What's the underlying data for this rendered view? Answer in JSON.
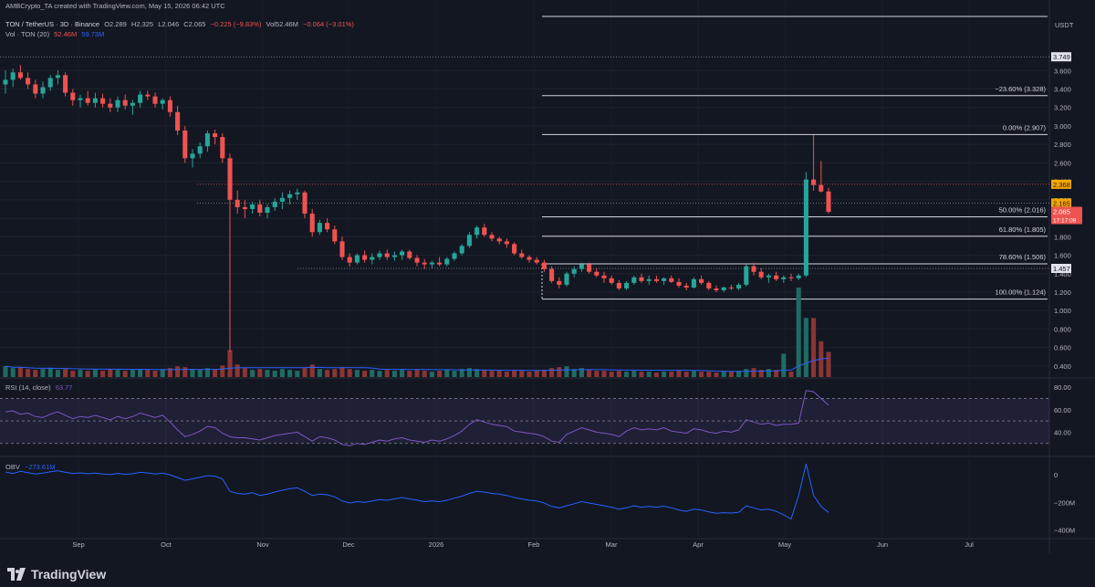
{
  "header": {
    "author": "AMBCrypto_TA created with TradingView.com, May 15, 2026 06:42 UTC",
    "symbol": "TON / TetherUS · 3D · Binance",
    "o": "O2.289",
    "h": "H2.325",
    "l": "L2.046",
    "c": "C2.065",
    "chg": "−0.225 (−9.83%)",
    "vol": "Vol52.46M",
    "vol_chg": "−0.064 (−3.01%)",
    "vol_ind": "Vol · TON (20)",
    "vol_val": "52.46M",
    "vol_ma": "59.73M"
  },
  "brand": "TradingView",
  "colors": {
    "up": "#26a69a",
    "down": "#ef5350",
    "bg": "#131722",
    "grid": "#2a2e39",
    "fib": "#d1d4dc",
    "rsi": "#7e57c2",
    "obv": "#2962ff",
    "ma": "#2962ff"
  },
  "chart_data": [
    {
      "type": "candlestick",
      "title": "TON / TetherUS · 3D · Binance",
      "currency": "USDT",
      "y_ticks": [
        "3.600",
        "3.400",
        "3.200",
        "3.000",
        "2.800",
        "2.600",
        "2.400",
        "2.200",
        "2.000",
        "1.800",
        "1.600",
        "1.400",
        "1.200",
        "1.000",
        "0.800",
        "0.600",
        "0.400"
      ],
      "ylim": [
        0.3,
        3.85
      ],
      "x_labels": [
        "Sep",
        "Oct",
        "Nov",
        "Dec",
        "2026",
        "Feb",
        "Mar",
        "Apr",
        "May",
        "Jun",
        "Jul"
      ],
      "ohlc": [
        [
          3.45,
          3.6,
          3.35,
          3.5
        ],
        [
          3.5,
          3.62,
          3.42,
          3.58
        ],
        [
          3.58,
          3.66,
          3.5,
          3.52
        ],
        [
          3.52,
          3.58,
          3.4,
          3.45
        ],
        [
          3.45,
          3.5,
          3.3,
          3.35
        ],
        [
          3.35,
          3.48,
          3.3,
          3.42
        ],
        [
          3.42,
          3.55,
          3.38,
          3.52
        ],
        [
          3.52,
          3.6,
          3.45,
          3.55
        ],
        [
          3.55,
          3.58,
          3.32,
          3.36
        ],
        [
          3.36,
          3.4,
          3.22,
          3.28
        ],
        [
          3.28,
          3.34,
          3.2,
          3.3
        ],
        [
          3.3,
          3.38,
          3.22,
          3.25
        ],
        [
          3.25,
          3.36,
          3.2,
          3.3
        ],
        [
          3.3,
          3.35,
          3.2,
          3.24
        ],
        [
          3.24,
          3.3,
          3.15,
          3.2
        ],
        [
          3.2,
          3.32,
          3.15,
          3.28
        ],
        [
          3.28,
          3.34,
          3.18,
          3.22
        ],
        [
          3.22,
          3.28,
          3.12,
          3.25
        ],
        [
          3.25,
          3.38,
          3.2,
          3.34
        ],
        [
          3.34,
          3.38,
          3.28,
          3.32
        ],
        [
          3.32,
          3.36,
          3.2,
          3.24
        ],
        [
          3.24,
          3.3,
          3.18,
          3.28
        ],
        [
          3.28,
          3.32,
          3.1,
          3.15
        ],
        [
          3.15,
          3.22,
          2.9,
          2.95
        ],
        [
          2.95,
          3.0,
          2.6,
          2.65
        ],
        [
          2.65,
          2.75,
          2.55,
          2.7
        ],
        [
          2.7,
          2.82,
          2.65,
          2.78
        ],
        [
          2.78,
          2.95,
          2.72,
          2.92
        ],
        [
          2.92,
          2.96,
          2.8,
          2.88
        ],
        [
          2.88,
          2.92,
          2.6,
          2.65
        ],
        [
          2.65,
          2.7,
          0.55,
          2.2
        ],
        [
          2.2,
          2.3,
          2.05,
          2.12
        ],
        [
          2.12,
          2.2,
          2.0,
          2.1
        ],
        [
          2.1,
          2.18,
          2.05,
          2.15
        ],
        [
          2.15,
          2.2,
          2.02,
          2.06
        ],
        [
          2.06,
          2.15,
          2.0,
          2.12
        ],
        [
          2.12,
          2.22,
          2.08,
          2.18
        ],
        [
          2.18,
          2.28,
          2.1,
          2.22
        ],
        [
          2.22,
          2.3,
          2.15,
          2.26
        ],
        [
          2.26,
          2.32,
          2.2,
          2.28
        ],
        [
          2.28,
          2.3,
          2.0,
          2.05
        ],
        [
          2.05,
          2.1,
          1.8,
          1.85
        ],
        [
          1.85,
          1.98,
          1.82,
          1.95
        ],
        [
          1.95,
          2.0,
          1.85,
          1.88
        ],
        [
          1.88,
          1.92,
          1.72,
          1.75
        ],
        [
          1.75,
          1.8,
          1.55,
          1.58
        ],
        [
          1.58,
          1.62,
          1.48,
          1.52
        ],
        [
          1.52,
          1.62,
          1.5,
          1.6
        ],
        [
          1.6,
          1.65,
          1.52,
          1.55
        ],
        [
          1.55,
          1.62,
          1.5,
          1.58
        ],
        [
          1.58,
          1.65,
          1.55,
          1.62
        ],
        [
          1.62,
          1.66,
          1.55,
          1.58
        ],
        [
          1.58,
          1.64,
          1.54,
          1.6
        ],
        [
          1.6,
          1.66,
          1.55,
          1.64
        ],
        [
          1.64,
          1.66,
          1.55,
          1.57
        ],
        [
          1.57,
          1.6,
          1.48,
          1.52
        ],
        [
          1.52,
          1.56,
          1.45,
          1.5
        ],
        [
          1.5,
          1.54,
          1.46,
          1.52
        ],
        [
          1.52,
          1.58,
          1.48,
          1.5
        ],
        [
          1.5,
          1.58,
          1.48,
          1.56
        ],
        [
          1.56,
          1.64,
          1.54,
          1.62
        ],
        [
          1.62,
          1.72,
          1.6,
          1.7
        ],
        [
          1.7,
          1.85,
          1.68,
          1.82
        ],
        [
          1.82,
          1.92,
          1.78,
          1.9
        ],
        [
          1.9,
          1.94,
          1.8,
          1.82
        ],
        [
          1.82,
          1.85,
          1.75,
          1.78
        ],
        [
          1.78,
          1.8,
          1.72,
          1.75
        ],
        [
          1.75,
          1.78,
          1.68,
          1.72
        ],
        [
          1.72,
          1.74,
          1.6,
          1.62
        ],
        [
          1.62,
          1.66,
          1.56,
          1.58
        ],
        [
          1.58,
          1.6,
          1.52,
          1.55
        ],
        [
          1.55,
          1.58,
          1.5,
          1.52
        ],
        [
          1.52,
          1.55,
          1.42,
          1.45
        ],
        [
          1.45,
          1.48,
          1.3,
          1.32
        ],
        [
          1.32,
          1.36,
          1.24,
          1.28
        ],
        [
          1.28,
          1.42,
          1.26,
          1.4
        ],
        [
          1.4,
          1.48,
          1.36,
          1.45
        ],
        [
          1.45,
          1.52,
          1.42,
          1.5
        ],
        [
          1.5,
          1.52,
          1.4,
          1.42
        ],
        [
          1.42,
          1.46,
          1.36,
          1.38
        ],
        [
          1.38,
          1.42,
          1.3,
          1.35
        ],
        [
          1.35,
          1.38,
          1.28,
          1.3
        ],
        [
          1.3,
          1.33,
          1.22,
          1.24
        ],
        [
          1.24,
          1.32,
          1.22,
          1.3
        ],
        [
          1.3,
          1.38,
          1.28,
          1.36
        ],
        [
          1.36,
          1.4,
          1.3,
          1.32
        ],
        [
          1.32,
          1.38,
          1.28,
          1.34
        ],
        [
          1.34,
          1.38,
          1.3,
          1.32
        ],
        [
          1.32,
          1.36,
          1.28,
          1.35
        ],
        [
          1.35,
          1.38,
          1.3,
          1.31
        ],
        [
          1.31,
          1.35,
          1.25,
          1.27
        ],
        [
          1.27,
          1.3,
          1.22,
          1.25
        ],
        [
          1.25,
          1.36,
          1.24,
          1.34
        ],
        [
          1.34,
          1.38,
          1.28,
          1.3
        ],
        [
          1.3,
          1.32,
          1.22,
          1.24
        ],
        [
          1.24,
          1.27,
          1.2,
          1.22
        ],
        [
          1.22,
          1.26,
          1.2,
          1.25
        ],
        [
          1.25,
          1.28,
          1.22,
          1.24
        ],
        [
          1.24,
          1.3,
          1.22,
          1.28
        ],
        [
          1.28,
          1.5,
          1.26,
          1.48
        ],
        [
          1.48,
          1.52,
          1.38,
          1.42
        ],
        [
          1.42,
          1.46,
          1.34,
          1.36
        ],
        [
          1.36,
          1.4,
          1.3,
          1.38
        ],
        [
          1.38,
          1.42,
          1.32,
          1.34
        ],
        [
          1.34,
          1.38,
          1.3,
          1.36
        ],
        [
          1.36,
          1.4,
          1.32,
          1.35
        ],
        [
          1.35,
          1.4,
          1.33,
          1.38
        ],
        [
          1.38,
          2.5,
          1.36,
          2.42
        ],
        [
          2.42,
          2.9,
          2.3,
          2.36
        ],
        [
          2.36,
          2.62,
          2.28,
          2.29
        ],
        [
          2.29,
          2.33,
          2.05,
          2.07
        ]
      ],
      "last_price": "2.065",
      "countdown": "17:17:09",
      "price_marks": [
        "3.749",
        "2.368",
        "2.165",
        "1.457"
      ],
      "fib_levels": [
        {
          "label": "−23.60% (3.328)",
          "value": 3.328
        },
        {
          "label": "0.00% (2.907)",
          "value": 2.907
        },
        {
          "label": "50.00% (2.016)",
          "value": 2.016
        },
        {
          "label": "61.80% (1.805)",
          "value": 1.805
        },
        {
          "label": "78.60% (1.506)",
          "value": 1.506
        },
        {
          "label": "100.00% (1.124)",
          "value": 1.124
        }
      ],
      "volume_rel": [
        0.12,
        0.1,
        0.11,
        0.09,
        0.08,
        0.09,
        0.1,
        0.08,
        0.09,
        0.07,
        0.08,
        0.07,
        0.08,
        0.07,
        0.09,
        0.08,
        0.07,
        0.08,
        0.09,
        0.08,
        0.07,
        0.09,
        0.1,
        0.12,
        0.11,
        0.09,
        0.08,
        0.1,
        0.09,
        0.13,
        0.3,
        0.14,
        0.1,
        0.08,
        0.09,
        0.08,
        0.07,
        0.09,
        0.08,
        0.07,
        0.1,
        0.14,
        0.09,
        0.08,
        0.09,
        0.11,
        0.09,
        0.08,
        0.07,
        0.08,
        0.07,
        0.08,
        0.07,
        0.08,
        0.07,
        0.08,
        0.07,
        0.06,
        0.07,
        0.08,
        0.07,
        0.09,
        0.1,
        0.09,
        0.08,
        0.07,
        0.07,
        0.06,
        0.07,
        0.07,
        0.06,
        0.07,
        0.08,
        0.1,
        0.11,
        0.12,
        0.09,
        0.1,
        0.08,
        0.07,
        0.07,
        0.06,
        0.07,
        0.06,
        0.07,
        0.06,
        0.06,
        0.05,
        0.06,
        0.06,
        0.07,
        0.06,
        0.07,
        0.06,
        0.06,
        0.05,
        0.06,
        0.06,
        0.07,
        0.09,
        0.1,
        0.08,
        0.09,
        0.08,
        0.26,
        0.06,
        1.0,
        0.66,
        0.66,
        0.4,
        0.28
      ],
      "vol_ma_label": "59.73M"
    },
    {
      "type": "line",
      "title": "RSI (14, close)",
      "value_label": "63.77",
      "y_ticks": [
        "80.00",
        "60.00",
        "40.00"
      ],
      "ylim": [
        20,
        85
      ],
      "bands": [
        70,
        50,
        30
      ],
      "values": [
        58,
        59,
        56,
        57,
        54,
        53,
        56,
        58,
        55,
        52,
        54,
        53,
        55,
        53,
        51,
        54,
        52,
        54,
        57,
        55,
        53,
        55,
        49,
        42,
        36,
        38,
        41,
        45,
        44,
        39,
        36,
        35,
        35,
        34,
        33,
        35,
        37,
        38,
        39,
        40,
        36,
        32,
        36,
        35,
        33,
        29,
        28,
        30,
        29,
        31,
        33,
        32,
        34,
        35,
        33,
        32,
        31,
        33,
        32,
        34,
        37,
        41,
        47,
        51,
        49,
        47,
        46,
        45,
        41,
        40,
        39,
        38,
        36,
        32,
        31,
        38,
        41,
        44,
        42,
        40,
        39,
        38,
        36,
        41,
        44,
        42,
        43,
        42,
        44,
        41,
        40,
        39,
        43,
        42,
        40,
        39,
        41,
        40,
        42,
        51,
        49,
        47,
        48,
        46,
        47,
        47,
        48,
        77,
        76,
        70,
        64
      ]
    },
    {
      "type": "line",
      "title": "OBV",
      "value_label": "−273.61M",
      "y_ticks": [
        "0",
        "−200M",
        "−400M"
      ],
      "ylim": [
        -450,
        100
      ],
      "values": [
        20,
        10,
        25,
        15,
        5,
        12,
        22,
        30,
        18,
        10,
        14,
        8,
        12,
        6,
        2,
        10,
        4,
        8,
        18,
        14,
        6,
        12,
        0,
        -20,
        -40,
        -30,
        -18,
        -6,
        -10,
        -30,
        -120,
        -135,
        -140,
        -130,
        -150,
        -140,
        -125,
        -112,
        -100,
        -95,
        -120,
        -150,
        -140,
        -145,
        -160,
        -190,
        -205,
        -195,
        -200,
        -190,
        -180,
        -185,
        -175,
        -165,
        -175,
        -185,
        -195,
        -190,
        -195,
        -185,
        -170,
        -155,
        -135,
        -120,
        -125,
        -135,
        -140,
        -150,
        -165,
        -175,
        -185,
        -190,
        -205,
        -230,
        -240,
        -225,
        -210,
        -195,
        -205,
        -215,
        -225,
        -235,
        -250,
        -240,
        -225,
        -235,
        -230,
        -235,
        -228,
        -240,
        -255,
        -265,
        -250,
        -255,
        -270,
        -280,
        -275,
        -278,
        -272,
        -225,
        -240,
        -255,
        -250,
        -265,
        -290,
        -320,
        -150,
        80,
        -150,
        -230,
        -273
      ]
    }
  ]
}
